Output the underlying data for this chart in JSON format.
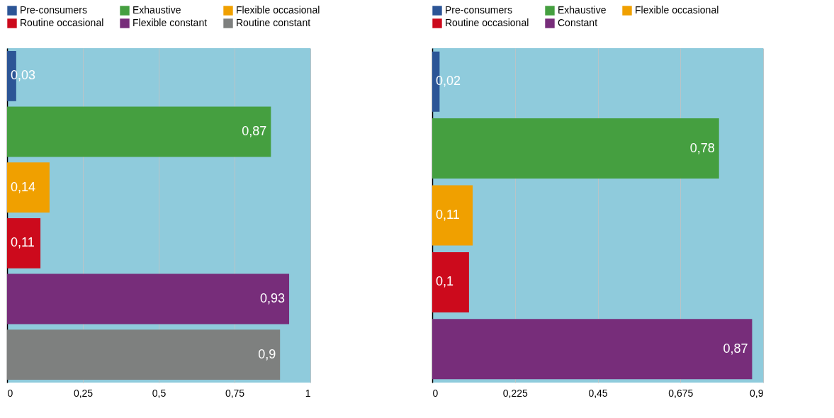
{
  "chart_data": [
    {
      "type": "bar",
      "orientation": "horizontal",
      "legend": "top",
      "grid": "x",
      "tick_labels": "x",
      "categories": [
        null,
        null,
        null,
        null,
        null,
        null
      ],
      "series": [
        {
          "name": "Pre-consumers",
          "color": "#2c5596",
          "values": [
            0.03,
            null,
            null,
            null,
            null,
            null
          ],
          "value_labels": [
            "0,03",
            null,
            null,
            null,
            null,
            null
          ]
        },
        {
          "name": "Exhaustive",
          "color": "#459f40",
          "values": [
            null,
            0.87,
            null,
            null,
            null,
            null
          ],
          "value_labels": [
            null,
            "0,87",
            null,
            null,
            null,
            null
          ]
        },
        {
          "name": "Flexible occasional",
          "color": "#f0a000",
          "values": [
            null,
            null,
            0.14,
            null,
            null,
            null
          ],
          "value_labels": [
            null,
            null,
            "0,14",
            null,
            null,
            null
          ]
        },
        {
          "name": "Routine occasional",
          "color": "#cc0a1c",
          "values": [
            null,
            null,
            null,
            0.11,
            null,
            null
          ],
          "value_labels": [
            null,
            null,
            null,
            "0,11",
            null,
            null
          ]
        },
        {
          "name": "Flexible constant",
          "color": "#772d7a",
          "values": [
            null,
            null,
            null,
            null,
            0.93,
            null
          ],
          "value_labels": [
            null,
            null,
            null,
            null,
            "0,93",
            null
          ]
        },
        {
          "name": "Routine constant",
          "color": "#7e807f",
          "values": [
            null,
            null,
            null,
            null,
            null,
            0.9
          ],
          "value_labels": [
            null,
            null,
            null,
            null,
            null,
            "0,9"
          ]
        }
      ],
      "xlim": [
        0,
        1
      ],
      "xticks": [
        0,
        {
          "value": 0.25,
          "label": "0,25"
        },
        {
          "value": 0.5,
          "label": "0,5"
        },
        {
          "value": 0.75,
          "label": "0,75"
        },
        1
      ]
    },
    {
      "type": "bar",
      "orientation": "horizontal",
      "legend": "top",
      "grid": "x",
      "tick_labels": "x",
      "categories": [
        null,
        null,
        null,
        null,
        null
      ],
      "series": [
        {
          "name": "Pre-consumers",
          "color": "#2c5596",
          "values": [
            0.02,
            null,
            null,
            null,
            null
          ],
          "value_labels": [
            "0,02",
            null,
            null,
            null,
            null
          ]
        },
        {
          "name": "Exhaustive",
          "color": "#459f40",
          "values": [
            null,
            0.78,
            null,
            null,
            null
          ],
          "value_labels": [
            null,
            "0,78",
            null,
            null,
            null
          ]
        },
        {
          "name": "Flexible occasional",
          "color": "#f0a000",
          "values": [
            null,
            null,
            0.11,
            null,
            null
          ],
          "value_labels": [
            null,
            null,
            "0,11",
            null,
            null
          ]
        },
        {
          "name": "Routine occasional",
          "color": "#cc0a1c",
          "values": [
            null,
            null,
            null,
            0.1,
            null
          ],
          "value_labels": [
            null,
            null,
            null,
            "0,1",
            null
          ]
        },
        {
          "name": "Constant",
          "color": "#772d7a",
          "values": [
            null,
            null,
            null,
            null,
            0.87
          ],
          "value_labels": [
            null,
            null,
            null,
            null,
            "0,87"
          ]
        }
      ],
      "xlim": [
        0,
        0.9
      ],
      "xticks": [
        0,
        {
          "value": 0.225,
          "label": "0,225"
        },
        {
          "value": 0.45,
          "label": "0,45"
        },
        {
          "value": 0.675,
          "label": "0,675"
        },
        {
          "value": 0.9,
          "label": "0,9"
        }
      ]
    }
  ]
}
